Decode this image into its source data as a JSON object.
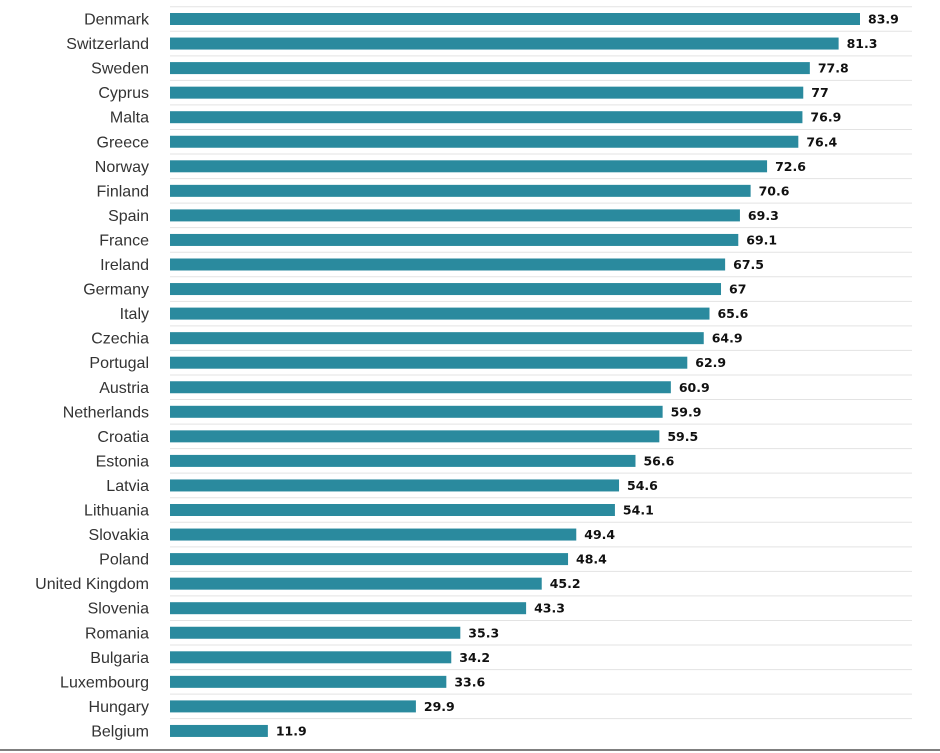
{
  "colors": {
    "bar": "#2a8a9e",
    "grid": "#e3e3e3",
    "baseline": "#555555"
  },
  "chart_data": {
    "type": "bar",
    "orientation": "horizontal",
    "title": "",
    "xlabel": "",
    "ylabel": "",
    "xlim": [
      0,
      90
    ],
    "grid": true,
    "categories": [
      "Denmark",
      "Switzerland",
      "Sweden",
      "Cyprus",
      "Malta",
      "Greece",
      "Norway",
      "Finland",
      "Spain",
      "France",
      "Ireland",
      "Germany",
      "Italy",
      "Czechia",
      "Portugal",
      "Austria",
      "Netherlands",
      "Croatia",
      "Estonia",
      "Latvia",
      "Lithuania",
      "Slovakia",
      "Poland",
      "United Kingdom",
      "Slovenia",
      "Romania",
      "Bulgaria",
      "Luxembourg",
      "Hungary",
      "Belgium"
    ],
    "values": [
      83.9,
      81.3,
      77.8,
      77,
      76.9,
      76.4,
      72.6,
      70.6,
      69.3,
      69.1,
      67.5,
      67,
      65.6,
      64.9,
      62.9,
      60.9,
      59.9,
      59.5,
      56.6,
      54.6,
      54.1,
      49.4,
      48.4,
      45.2,
      43.3,
      35.3,
      34.2,
      33.6,
      29.9,
      11.9
    ],
    "value_labels": [
      "83.9",
      "81.3",
      "77.8",
      "77",
      "76.9",
      "76.4",
      "72.6",
      "70.6",
      "69.3",
      "69.1",
      "67.5",
      "67",
      "65.6",
      "64.9",
      "62.9",
      "60.9",
      "59.9",
      "59.5",
      "56.6",
      "54.6",
      "54.1",
      "49.4",
      "48.4",
      "45.2",
      "43.3",
      "35.3",
      "34.2",
      "33.6",
      "29.9",
      "11.9"
    ]
  }
}
